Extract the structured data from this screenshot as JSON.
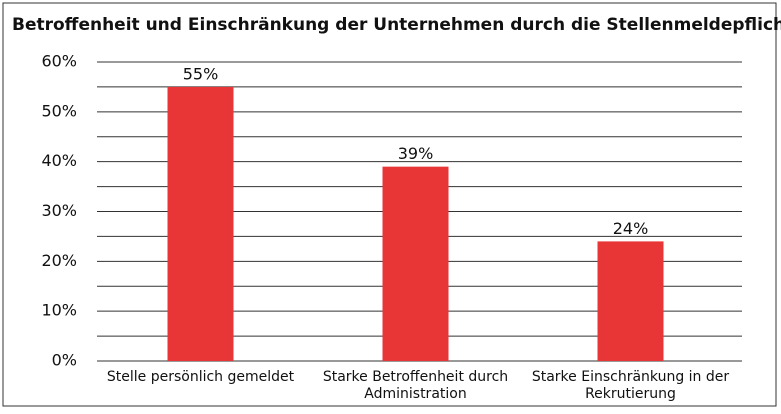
{
  "chart_data": {
    "type": "bar",
    "title": "Betroffenheit und Einschränkung der Unternehmen durch die Stellenmeldepflicht",
    "categories": [
      "Stelle persönlich gemeldet",
      "Starke Betroffenheit durch Administration",
      "Starke Einschränkung in der Rekrutierung"
    ],
    "values": [
      55,
      39,
      24
    ],
    "value_labels": [
      "55%",
      "39%",
      "24%"
    ],
    "color": "#e83535",
    "ylim": [
      0,
      60
    ],
    "yticks": [
      {
        "value": 0,
        "label": "0%"
      },
      {
        "value": 10,
        "label": "10%"
      },
      {
        "value": 20,
        "label": "20%"
      },
      {
        "value": 30,
        "label": "30%"
      },
      {
        "value": 40,
        "label": "40%"
      },
      {
        "value": 50,
        "label": "50%"
      },
      {
        "value": 60,
        "label": "60%"
      }
    ],
    "grid_lines": [
      0,
      5,
      10,
      15,
      20,
      25,
      30,
      35,
      40,
      45,
      50,
      55,
      60
    ],
    "grid": true
  }
}
